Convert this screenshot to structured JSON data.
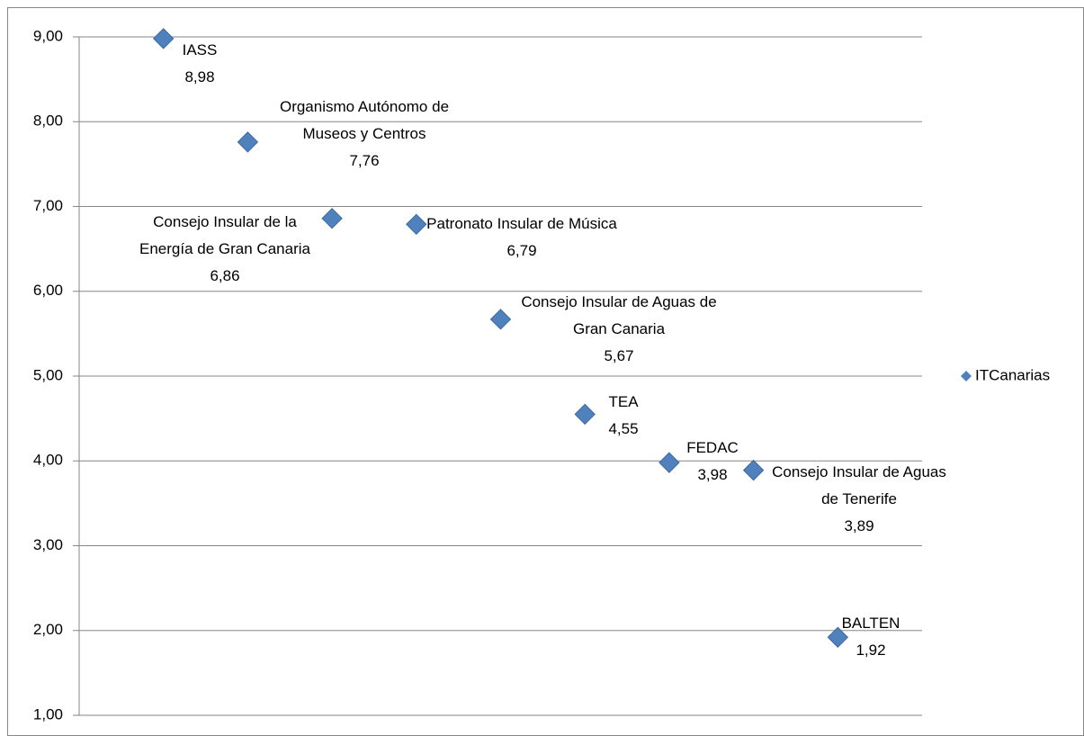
{
  "chart_data": {
    "type": "scatter",
    "categories": [
      "IASS",
      "Organismo Autónomo de Museos y Centros",
      "Consejo Insular de la Energía de Gran Canaria",
      "Patronato Insular de Música",
      "Consejo Insular de Aguas de Gran Canaria",
      "TEA",
      "FEDAC",
      "Consejo Insular de Aguas de Tenerife",
      "BALTEN"
    ],
    "series": [
      {
        "name": "ITCanarias",
        "color": "#4f81bd",
        "values": [
          8.98,
          7.76,
          6.86,
          6.79,
          5.67,
          4.55,
          3.98,
          3.89,
          1.92
        ],
        "value_labels": [
          "8,98",
          "7,76",
          "6,86",
          "6,79",
          "5,67",
          "4,55",
          "3,98",
          "3,89",
          "1,92"
        ]
      }
    ],
    "ylim": [
      1,
      9
    ],
    "yticks": [
      {
        "value": 1,
        "label": "1,00"
      },
      {
        "value": 2,
        "label": "2,00"
      },
      {
        "value": 3,
        "label": "3,00"
      },
      {
        "value": 4,
        "label": "4,00"
      },
      {
        "value": 5,
        "label": "5,00"
      },
      {
        "value": 6,
        "label": "6,00"
      },
      {
        "value": 7,
        "label": "7,00"
      },
      {
        "value": 8,
        "label": "8,00"
      },
      {
        "value": 9,
        "label": "9,00"
      }
    ],
    "grid": true,
    "legend": "right"
  }
}
